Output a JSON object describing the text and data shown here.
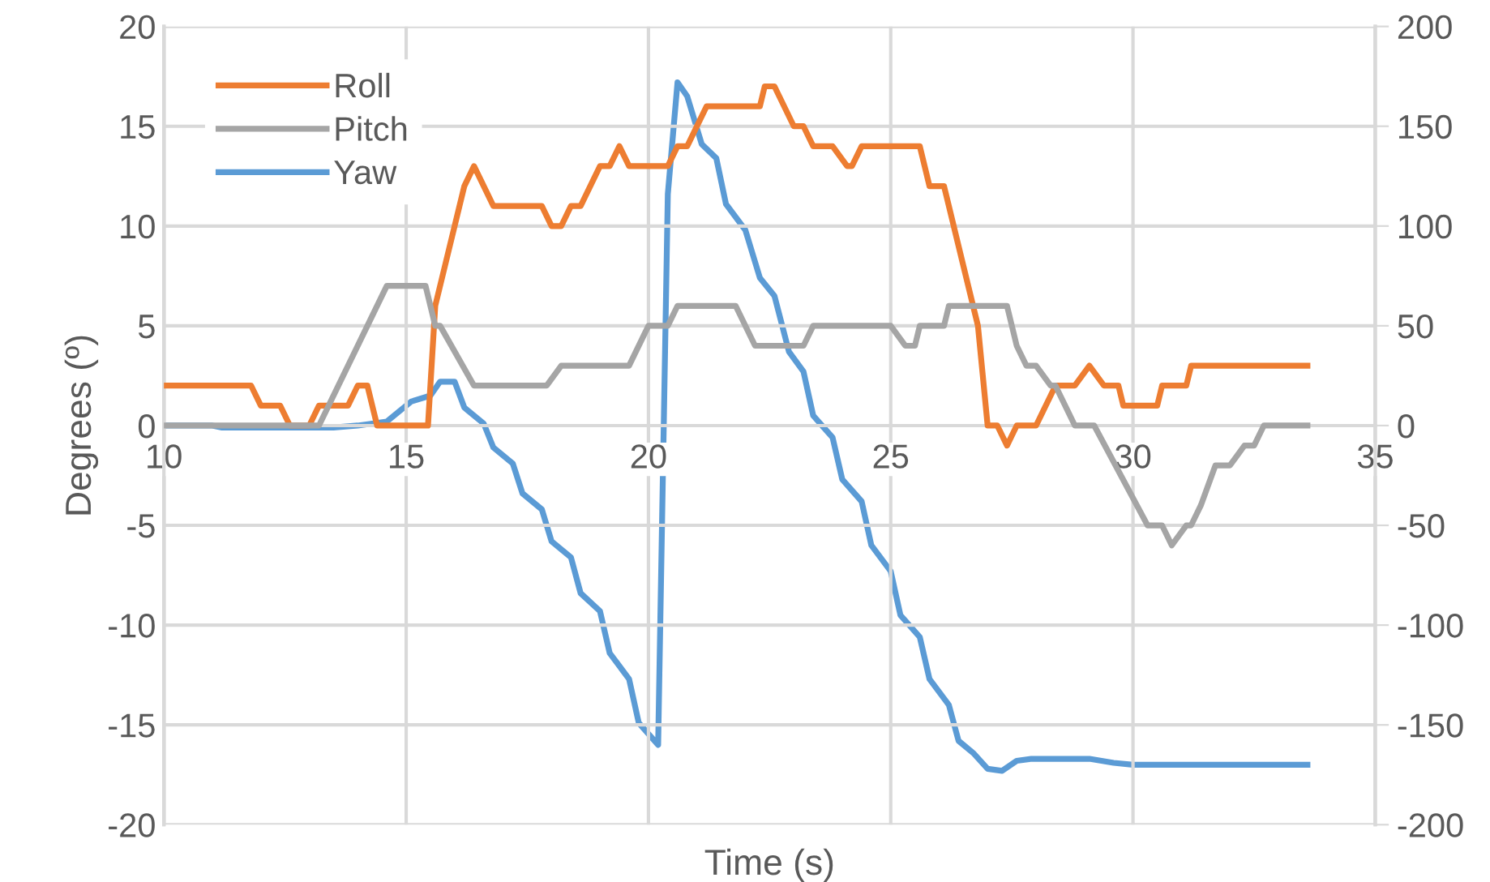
{
  "chart_data": {
    "type": "line",
    "xlabel": "Time (s)",
    "ylabel": "Degrees (º)",
    "xlim": [
      10,
      35
    ],
    "xticks": [
      10,
      15,
      20,
      25,
      30,
      35
    ],
    "ylim": [
      -20,
      20
    ],
    "yticks": [
      -20,
      -15,
      -10,
      -5,
      0,
      5,
      10,
      15,
      20
    ],
    "y2lim": [
      -200,
      200
    ],
    "y2ticks": [
      -200,
      -150,
      -100,
      -50,
      0,
      50,
      100,
      150,
      200
    ],
    "grid": true,
    "legend": "top left",
    "marker": "none",
    "line_style": "solid",
    "series": [
      {
        "name": "Roll",
        "color": "#ed7d31",
        "x": [
          10,
          11.8,
          12.0,
          12.4,
          12.6,
          13.0,
          13.2,
          13.8,
          14.0,
          14.2,
          14.4,
          15.45,
          15.6,
          16.2,
          16.4,
          16.8,
          17.8,
          18.0,
          18.2,
          18.4,
          18.6,
          19.0,
          19.2,
          19.4,
          19.6,
          20.4,
          20.6,
          20.8,
          21.2,
          22.3,
          22.4,
          22.6,
          23.0,
          23.2,
          23.4,
          23.8,
          24.1,
          24.2,
          24.4,
          25.6,
          25.8,
          26.1,
          26.2,
          26.5,
          26.8,
          27.0,
          27.2,
          27.4,
          27.6,
          28.0,
          28.4,
          28.8,
          29.1,
          29.4,
          29.7,
          29.8,
          30.5,
          30.6,
          31.1,
          31.2,
          33.6
        ],
        "values": [
          2,
          2,
          1,
          1,
          0,
          0,
          1,
          1,
          2,
          2,
          0,
          0,
          6,
          12,
          13,
          11,
          11,
          10,
          10,
          11,
          11,
          13,
          13,
          14,
          13,
          13,
          14,
          14,
          16,
          16,
          17,
          17,
          15,
          15,
          14,
          14,
          13,
          13,
          14,
          14,
          12,
          12,
          11,
          8,
          5,
          0,
          0,
          -1,
          0,
          0,
          2,
          2,
          3,
          2,
          2,
          1,
          1,
          2,
          2,
          3,
          3
        ]
      },
      {
        "name": "Pitch",
        "color": "#a5a5a5",
        "x": [
          10,
          13.2,
          14.2,
          14.6,
          15.4,
          15.6,
          15.7,
          16.4,
          17.9,
          18.2,
          19.6,
          20.0,
          20.4,
          20.6,
          21.8,
          22.2,
          23.2,
          23.4,
          25.0,
          25.3,
          25.5,
          25.6,
          26.1,
          26.2,
          27.4,
          27.6,
          27.8,
          28.0,
          28.3,
          28.4,
          28.8,
          29.2,
          30.3,
          30.6,
          30.8,
          31.1,
          31.2,
          31.4,
          31.7,
          32.0,
          32.3,
          32.5,
          32.7,
          33.6
        ],
        "values": [
          0,
          0,
          5,
          7,
          7,
          5,
          5,
          2,
          2,
          3,
          3,
          5,
          5,
          6,
          6,
          4,
          4,
          5,
          5,
          4,
          4,
          5,
          5,
          6,
          6,
          4,
          3,
          3,
          2,
          2,
          0,
          0,
          -5,
          -5,
          -6,
          -5,
          -5,
          -4,
          -2,
          -2,
          -1,
          -1,
          0,
          0
        ]
      },
      {
        "name": "Yaw",
        "color": "#5b9bd5",
        "axis": "y2",
        "x": [
          10,
          11.0,
          11.2,
          13.5,
          14.0,
          14.6,
          15.1,
          15.5,
          15.7,
          16.0,
          16.2,
          16.6,
          16.8,
          17.2,
          17.4,
          17.8,
          18.0,
          18.4,
          18.6,
          19.0,
          19.2,
          19.6,
          19.8,
          20.2,
          20.4,
          20.6,
          20.8,
          21.1,
          21.4,
          21.6,
          22.0,
          22.3,
          22.6,
          22.9,
          23.2,
          23.4,
          23.8,
          24.0,
          24.4,
          24.6,
          25.0,
          25.2,
          25.6,
          25.8,
          26.2,
          26.4,
          26.7,
          27.0,
          27.3,
          27.6,
          27.9,
          29.1,
          29.6,
          30.0,
          33.6
        ],
        "values": [
          0,
          0,
          -1,
          -1,
          0,
          2,
          12,
          15,
          22,
          22,
          9,
          1,
          -11,
          -19,
          -34,
          -42,
          -58,
          -66,
          -84,
          -93,
          -114,
          -127,
          -149,
          -160,
          116,
          172,
          165,
          141,
          134,
          111,
          98,
          74,
          65,
          37,
          27,
          5,
          -6,
          -27,
          -38,
          -60,
          -73,
          -95,
          -106,
          -127,
          -140,
          -158,
          -164,
          -172,
          -173,
          -168,
          -167,
          -167,
          -169,
          -170,
          -170
        ]
      }
    ]
  }
}
